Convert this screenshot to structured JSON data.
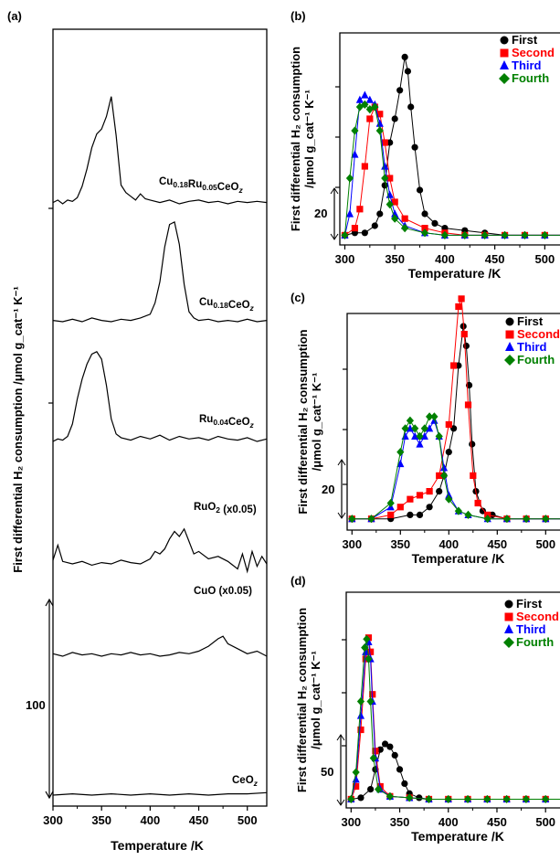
{
  "figure": {
    "panel_a": {
      "letter": "(a)",
      "ylabel": "First differential H₂ consumption /μmol g_cat⁻¹ K⁻¹",
      "xlabel": "Temperature /K",
      "scale_bar_value": "100",
      "xticks": [
        "300",
        "350",
        "400",
        "450",
        "500"
      ],
      "traces": [
        {
          "label_main": "Cu",
          "label_sub1": "0.18",
          "label_mid": "Ru",
          "label_sub2": "0.05",
          "label_end": "CeO",
          "label_subz": "z"
        },
        {
          "label_main": "Cu",
          "label_sub1": "0.18",
          "label_mid": "",
          "label_sub2": "",
          "label_end": "CeO",
          "label_subz": "z"
        },
        {
          "label_main": "Ru",
          "label_sub1": "0.04",
          "label_mid": "",
          "label_sub2": "",
          "label_end": "CeO",
          "label_subz": "z"
        },
        {
          "label_main": "RuO",
          "label_sub1": "2",
          "label_mid": " (x0.05)",
          "label_sub2": "",
          "label_end": "",
          "label_subz": ""
        },
        {
          "label_main": "CuO (x0.05)",
          "label_sub1": "",
          "label_mid": "",
          "label_sub2": "",
          "label_end": "",
          "label_subz": ""
        },
        {
          "label_main": "CeO",
          "label_sub1": "z",
          "label_mid": "",
          "label_sub2": "",
          "label_end": "",
          "label_subz": ""
        }
      ]
    },
    "panel_b": {
      "letter": "(b)",
      "scale_bar_value": "20"
    },
    "panel_c": {
      "letter": "(c)",
      "scale_bar_value": "20"
    },
    "panel_d": {
      "letter": "(d)",
      "scale_bar_value": "50"
    },
    "right_ylabel_line1": "First differential H₂ consumption",
    "right_ylabel_line2": "/μmol g_cat⁻¹ K⁻¹",
    "right_xlabel": "Temperature /K",
    "right_xticks": [
      "300",
      "350",
      "400",
      "450",
      "500"
    ],
    "legend": [
      "First",
      "Second",
      "Third",
      "Fourth"
    ],
    "colors": {
      "First": "#000000",
      "Second": "#ff0000",
      "Third": "#0000ff",
      "Fourth": "#008000",
      "axis": "#000000"
    },
    "markers": {
      "First": "circle",
      "Second": "square",
      "Third": "triangle",
      "Fourth": "diamond"
    }
  },
  "chart_data": [
    {
      "type": "line",
      "panel": "(a)",
      "xlabel": "Temperature /K",
      "ylabel": "First differential H2 consumption /μmol g_cat-1 K-1",
      "xlim": [
        300,
        520
      ],
      "scale_bar": 100,
      "series": [
        {
          "name": "Cu0.18Ru0.05CeOz",
          "x": [
            300,
            305,
            310,
            315,
            320,
            325,
            330,
            335,
            340,
            345,
            350,
            355,
            360,
            365,
            370,
            375,
            380,
            385,
            390,
            395,
            400,
            410,
            420,
            430,
            440,
            450,
            460,
            470,
            480,
            490,
            500,
            510,
            520
          ],
          "y": [
            1,
            3,
            0,
            3,
            2,
            5,
            14,
            28,
            45,
            56,
            60,
            70,
            86,
            55,
            15,
            9,
            6,
            3,
            8,
            4,
            3,
            1,
            3,
            0,
            2,
            3,
            1,
            2,
            0,
            2,
            1,
            2,
            1
          ]
        },
        {
          "name": "Cu0.18CeOz",
          "x": [
            300,
            310,
            320,
            330,
            340,
            350,
            360,
            370,
            380,
            390,
            400,
            405,
            410,
            415,
            420,
            425,
            430,
            435,
            440,
            445,
            450,
            460,
            470,
            480,
            490,
            500,
            510,
            520
          ],
          "y": [
            1,
            0,
            2,
            0,
            3,
            1,
            0,
            2,
            1,
            3,
            6,
            15,
            32,
            60,
            78,
            80,
            62,
            30,
            8,
            3,
            1,
            2,
            0,
            1,
            0,
            2,
            0,
            1
          ]
        },
        {
          "name": "Ru0.04CeOz",
          "x": [
            300,
            305,
            310,
            315,
            320,
            325,
            330,
            335,
            340,
            345,
            350,
            355,
            360,
            365,
            370,
            380,
            390,
            400,
            410,
            420,
            430,
            440,
            450,
            460,
            470,
            480,
            490,
            500,
            510,
            520
          ],
          "y": [
            0,
            2,
            1,
            4,
            14,
            34,
            50,
            62,
            70,
            72,
            66,
            45,
            18,
            6,
            3,
            1,
            4,
            2,
            5,
            1,
            4,
            2,
            3,
            1,
            4,
            2,
            1,
            3,
            0,
            2
          ]
        },
        {
          "name": "RuO2 (x0.05)",
          "x": [
            300,
            305,
            310,
            320,
            330,
            340,
            350,
            360,
            370,
            380,
            390,
            400,
            405,
            410,
            415,
            420,
            425,
            430,
            435,
            440,
            445,
            450,
            460,
            470,
            480,
            490,
            495,
            500,
            505,
            510,
            515,
            520
          ],
          "y": [
            3,
            15,
            2,
            0,
            2,
            -1,
            1,
            0,
            3,
            1,
            0,
            4,
            10,
            8,
            12,
            20,
            26,
            22,
            28,
            18,
            8,
            10,
            4,
            6,
            2,
            -4,
            8,
            -6,
            10,
            -2,
            6,
            0
          ]
        },
        {
          "name": "CuO (x0.05)",
          "x": [
            300,
            310,
            320,
            330,
            340,
            350,
            360,
            370,
            380,
            390,
            400,
            410,
            420,
            430,
            440,
            450,
            460,
            470,
            475,
            480,
            490,
            500,
            510,
            520
          ],
          "y": [
            2,
            0,
            3,
            1,
            2,
            0,
            2,
            1,
            3,
            1,
            2,
            0,
            1,
            3,
            2,
            4,
            8,
            14,
            16,
            10,
            6,
            2,
            4,
            0
          ]
        },
        {
          "name": "CeOz",
          "x": [
            300,
            320,
            340,
            360,
            380,
            400,
            420,
            440,
            460,
            480,
            500,
            520
          ],
          "y": [
            0,
            1,
            0,
            1,
            0,
            1,
            0,
            1,
            0,
            1,
            1,
            2
          ]
        }
      ]
    },
    {
      "type": "line",
      "panel": "(b)",
      "xlabel": "Temperature /K",
      "xlim": [
        295,
        525
      ],
      "scale_bar": 20,
      "series": [
        {
          "name": "First",
          "x": [
            300,
            310,
            320,
            330,
            335,
            340,
            345,
            350,
            355,
            360,
            363,
            366,
            370,
            375,
            380,
            390,
            400,
            420,
            440,
            460,
            480,
            500,
            520
          ],
          "y": [
            1,
            2,
            2,
            5,
            10,
            22,
            40,
            50,
            62,
            76,
            70,
            55,
            38,
            20,
            10,
            6,
            4,
            3,
            2,
            1,
            1,
            1,
            1
          ]
        },
        {
          "name": "Second",
          "x": [
            300,
            310,
            315,
            320,
            325,
            330,
            335,
            340,
            345,
            350,
            360,
            380,
            400,
            420,
            440,
            460,
            480,
            500,
            520
          ],
          "y": [
            1,
            4,
            12,
            30,
            50,
            55,
            52,
            40,
            25,
            15,
            8,
            4,
            2,
            1,
            1,
            1,
            1,
            1,
            1
          ]
        },
        {
          "name": "Third",
          "x": [
            300,
            305,
            310,
            315,
            320,
            325,
            330,
            335,
            340,
            345,
            350,
            360,
            380,
            400,
            420,
            440,
            460,
            480,
            500,
            520
          ],
          "y": [
            1,
            10,
            35,
            58,
            60,
            58,
            56,
            48,
            30,
            18,
            10,
            5,
            2,
            1,
            1,
            1,
            1,
            1,
            1,
            1
          ]
        },
        {
          "name": "Fourth",
          "x": [
            300,
            305,
            310,
            315,
            320,
            325,
            330,
            335,
            340,
            345,
            350,
            360,
            380,
            400,
            420,
            440,
            460,
            480,
            500,
            520
          ],
          "y": [
            1,
            25,
            45,
            55,
            56,
            54,
            55,
            45,
            25,
            14,
            8,
            4,
            2,
            1,
            1,
            1,
            1,
            1,
            1,
            1
          ]
        }
      ]
    },
    {
      "type": "line",
      "panel": "(c)",
      "xlabel": "Temperature /K",
      "xlim": [
        295,
        525
      ],
      "scale_bar": 20,
      "series": [
        {
          "name": "First",
          "x": [
            300,
            320,
            340,
            360,
            370,
            380,
            390,
            395,
            400,
            405,
            410,
            415,
            418,
            421,
            424,
            428,
            435,
            445,
            460,
            480,
            500,
            520
          ],
          "y": [
            1,
            1,
            1,
            2,
            2,
            4,
            8,
            12,
            18,
            24,
            40,
            50,
            45,
            35,
            20,
            8,
            3,
            2,
            1,
            1,
            1,
            1
          ]
        },
        {
          "name": "Second",
          "x": [
            300,
            320,
            340,
            350,
            360,
            370,
            380,
            390,
            400,
            405,
            410,
            413,
            416,
            420,
            425,
            430,
            440,
            460,
            480,
            500,
            520
          ],
          "y": [
            1,
            1,
            2,
            4,
            6,
            7,
            8,
            12,
            25,
            40,
            55,
            57,
            48,
            30,
            12,
            5,
            2,
            1,
            1,
            1,
            1
          ]
        },
        {
          "name": "Third",
          "x": [
            300,
            320,
            340,
            350,
            355,
            360,
            365,
            370,
            375,
            380,
            385,
            390,
            395,
            400,
            410,
            420,
            440,
            460,
            480,
            500,
            520
          ],
          "y": [
            1,
            1,
            4,
            15,
            22,
            24,
            22,
            20,
            22,
            24,
            26,
            22,
            14,
            7,
            3,
            2,
            1,
            1,
            1,
            1,
            1
          ]
        },
        {
          "name": "Fourth",
          "x": [
            300,
            320,
            340,
            350,
            355,
            360,
            365,
            370,
            375,
            380,
            385,
            390,
            395,
            400,
            410,
            420,
            440,
            460,
            480,
            500,
            520
          ],
          "y": [
            1,
            1,
            5,
            18,
            24,
            26,
            24,
            22,
            24,
            27,
            27,
            22,
            12,
            6,
            3,
            2,
            1,
            1,
            1,
            1,
            1
          ]
        }
      ]
    },
    {
      "type": "line",
      "panel": "(d)",
      "xlabel": "Temperature /K",
      "xlim": [
        295,
        525
      ],
      "scale_bar": 50,
      "series": [
        {
          "name": "First",
          "x": [
            300,
            310,
            320,
            325,
            330,
            335,
            340,
            345,
            350,
            355,
            360,
            370,
            380,
            400,
            420,
            440,
            460,
            480,
            500,
            520
          ],
          "y": [
            1,
            2,
            8,
            22,
            36,
            40,
            38,
            32,
            22,
            12,
            5,
            2,
            1,
            1,
            1,
            1,
            1,
            1,
            1,
            1
          ]
        },
        {
          "name": "Second",
          "x": [
            300,
            305,
            310,
            315,
            318,
            320,
            322,
            325,
            330,
            340,
            360,
            380,
            400,
            420,
            440,
            460,
            480,
            500,
            520
          ],
          "y": [
            1,
            10,
            50,
            100,
            115,
            105,
            75,
            35,
            10,
            3,
            2,
            1,
            1,
            1,
            1,
            1,
            1,
            1,
            1
          ]
        },
        {
          "name": "Third",
          "x": [
            300,
            305,
            310,
            315,
            318,
            320,
            322,
            325,
            330,
            340,
            360,
            380,
            400,
            420,
            440,
            460,
            480,
            500,
            520
          ],
          "y": [
            1,
            15,
            60,
            105,
            112,
            100,
            70,
            30,
            8,
            3,
            2,
            1,
            1,
            1,
            1,
            1,
            1,
            1,
            1
          ]
        },
        {
          "name": "Fourth",
          "x": [
            300,
            305,
            310,
            314,
            316,
            318,
            320,
            323,
            328,
            340,
            360,
            380,
            400,
            420,
            440,
            460,
            480,
            500,
            520
          ],
          "y": [
            1,
            20,
            70,
            108,
            114,
            100,
            70,
            30,
            8,
            3,
            2,
            1,
            1,
            1,
            1,
            1,
            1,
            1,
            1
          ]
        }
      ]
    }
  ]
}
